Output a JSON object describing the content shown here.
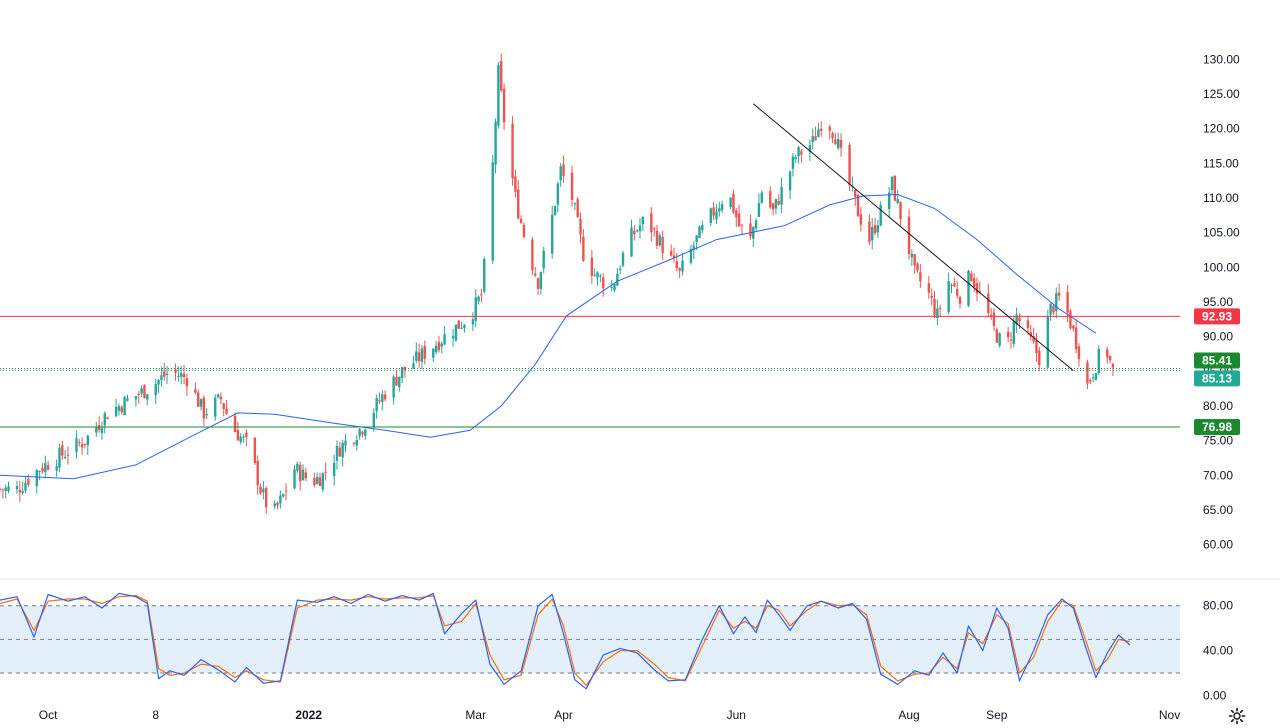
{
  "chart_data": {
    "type": "candlestick",
    "price_ylim": [
      57.5,
      132.5
    ],
    "price_ticks": [
      "130.00",
      "125.00",
      "120.00",
      "115.00",
      "110.00",
      "105.00",
      "100.00",
      "95.00",
      "90.00",
      "85.00",
      "80.00",
      "75.00",
      "70.00",
      "65.00",
      "60.00"
    ],
    "price_tick_values": [
      130,
      125,
      120,
      115,
      110,
      105,
      100,
      95,
      90,
      85,
      80,
      75,
      70,
      65,
      60
    ],
    "osc_ylim": [
      -4,
      94
    ],
    "osc_ticks": [
      "80.00",
      "40.00",
      "0.00"
    ],
    "osc_tick_values": [
      80,
      40,
      0
    ],
    "osc_band": [
      20,
      80
    ],
    "osc_mid": 50,
    "x_labels": [
      "Oct",
      "8",
      "2022",
      "Mar",
      "Apr",
      "Jun",
      "Aug",
      "Sep",
      "Nov"
    ],
    "x_label_bold": [
      false,
      false,
      true,
      false,
      false,
      false,
      false,
      false,
      false
    ],
    "x_label_dates": [
      "2021-10-01",
      "2021-11-08",
      "2022-01-01",
      "2022-03-01",
      "2022-04-01",
      "2022-06-01",
      "2022-08-01",
      "2022-09-01",
      "2022-11-01"
    ],
    "x_start": "2021-09-14",
    "x_end": "2022-12-10",
    "levels": [
      {
        "label": "92.93",
        "value": 92.93,
        "color": "#f23645",
        "style": "solid"
      },
      {
        "label": "85.41",
        "value": 85.41,
        "color": "#1b8a2f",
        "style": "dotted"
      },
      {
        "label": "85.13",
        "value": 85.13,
        "color": "#22ab94",
        "style": "dotted"
      },
      {
        "label": "76.98",
        "value": 76.98,
        "color": "#1b8a2f",
        "style": "solid"
      }
    ],
    "trendline": {
      "from": {
        "date": "2022-06-07",
        "value": 123.6
      },
      "to": {
        "date": "2022-09-28",
        "value": 85.1
      },
      "color": "#131722"
    },
    "series": [
      {
        "name": "",
        "kind": "ohlc"
      },
      {
        "name": "",
        "kind": "moving_average"
      },
      {
        "name": "",
        "kind": "stochastic_k"
      },
      {
        "name": "",
        "kind": "stochastic_d"
      }
    ],
    "close_path": [
      [
        "2021-09-14",
        68
      ],
      [
        "2021-09-20",
        68
      ],
      [
        "2021-09-28",
        71
      ],
      [
        "2021-10-06",
        73
      ],
      [
        "2021-10-14",
        75
      ],
      [
        "2021-10-22",
        79
      ],
      [
        "2021-10-30",
        81
      ],
      [
        "2021-11-07",
        83
      ],
      [
        "2021-11-13",
        85
      ],
      [
        "2021-11-19",
        84
      ],
      [
        "2021-11-25",
        79
      ],
      [
        "2021-12-01",
        81
      ],
      [
        "2021-12-05",
        77
      ],
      [
        "2021-12-11",
        74
      ],
      [
        "2021-12-15",
        68
      ],
      [
        "2021-12-19",
        64
      ],
      [
        "2021-12-23",
        67
      ],
      [
        "2021-12-27",
        71
      ],
      [
        "2022-01-02",
        69
      ],
      [
        "2022-01-06",
        70
      ],
      [
        "2022-01-12",
        74
      ],
      [
        "2022-01-20",
        77
      ],
      [
        "2022-01-28",
        82
      ],
      [
        "2022-02-03",
        85
      ],
      [
        "2022-02-09",
        87
      ],
      [
        "2022-02-15",
        89
      ],
      [
        "2022-02-21",
        91
      ],
      [
        "2022-02-27",
        93
      ],
      [
        "2022-03-03",
        96
      ],
      [
        "2022-03-06",
        108
      ],
      [
        "2022-03-09",
        128
      ],
      [
        "2022-03-12",
        118
      ],
      [
        "2022-03-15",
        110
      ],
      [
        "2022-03-19",
        103
      ],
      [
        "2022-03-23",
        98
      ],
      [
        "2022-03-27",
        105
      ],
      [
        "2022-03-31",
        114
      ],
      [
        "2022-04-04",
        110
      ],
      [
        "2022-04-08",
        102
      ],
      [
        "2022-04-12",
        99
      ],
      [
        "2022-04-18",
        97
      ],
      [
        "2022-04-24",
        104
      ],
      [
        "2022-04-30",
        107
      ],
      [
        "2022-05-06",
        103
      ],
      [
        "2022-05-12",
        99
      ],
      [
        "2022-05-18",
        104
      ],
      [
        "2022-05-24",
        108
      ],
      [
        "2022-05-29",
        111
      ],
      [
        "2022-06-02",
        106
      ],
      [
        "2022-06-06",
        104
      ],
      [
        "2022-06-10",
        111
      ],
      [
        "2022-06-14",
        108
      ],
      [
        "2022-06-18",
        112
      ],
      [
        "2022-06-22",
        116
      ],
      [
        "2022-06-28",
        118
      ],
      [
        "2022-07-02",
        122
      ],
      [
        "2022-07-06",
        119
      ],
      [
        "2022-07-10",
        113
      ],
      [
        "2022-07-14",
        108
      ],
      [
        "2022-07-18",
        104
      ],
      [
        "2022-07-22",
        108
      ],
      [
        "2022-07-26",
        112
      ],
      [
        "2022-07-30",
        106
      ],
      [
        "2022-08-03",
        99
      ],
      [
        "2022-08-07",
        97
      ],
      [
        "2022-08-11",
        93
      ],
      [
        "2022-08-15",
        98
      ],
      [
        "2022-08-19",
        96
      ],
      [
        "2022-08-23",
        99
      ],
      [
        "2022-08-27",
        95
      ],
      [
        "2022-08-31",
        91
      ],
      [
        "2022-09-04",
        88
      ],
      [
        "2022-09-08",
        93
      ],
      [
        "2022-09-12",
        90
      ],
      [
        "2022-09-16",
        87
      ],
      [
        "2022-09-20",
        94
      ],
      [
        "2022-09-24",
        96
      ],
      [
        "2022-09-27",
        92
      ],
      [
        "2022-09-30",
        88
      ],
      [
        "2022-10-03",
        83
      ],
      [
        "2022-10-06",
        86
      ],
      [
        "2022-10-09",
        89
      ],
      [
        "2022-10-12",
        85
      ]
    ],
    "ma_path": [
      [
        "2021-09-14",
        70
      ],
      [
        "2021-10-10",
        69.5
      ],
      [
        "2021-11-01",
        71.5
      ],
      [
        "2021-11-20",
        75.5
      ],
      [
        "2021-12-07",
        79
      ],
      [
        "2021-12-20",
        78.8
      ],
      [
        "2022-01-10",
        77.5
      ],
      [
        "2022-01-28",
        76.5
      ],
      [
        "2022-02-13",
        75.5
      ],
      [
        "2022-02-27",
        76.5
      ],
      [
        "2022-03-10",
        80
      ],
      [
        "2022-03-22",
        86
      ],
      [
        "2022-04-02",
        93
      ],
      [
        "2022-04-20",
        98
      ],
      [
        "2022-05-08",
        101
      ],
      [
        "2022-05-25",
        104
      ],
      [
        "2022-06-06",
        105
      ],
      [
        "2022-06-18",
        106
      ],
      [
        "2022-07-04",
        109
      ],
      [
        "2022-07-16",
        110.3
      ],
      [
        "2022-07-28",
        110.5
      ],
      [
        "2022-08-10",
        108.5
      ],
      [
        "2022-08-25",
        104
      ],
      [
        "2022-09-08",
        99
      ],
      [
        "2022-09-23",
        94
      ],
      [
        "2022-10-06",
        90.5
      ]
    ],
    "stoch_k_path": [
      [
        "2021-09-14",
        85
      ],
      [
        "2021-09-20",
        88
      ],
      [
        "2021-09-26",
        52
      ],
      [
        "2021-10-01",
        90
      ],
      [
        "2021-10-08",
        84
      ],
      [
        "2021-10-14",
        88
      ],
      [
        "2021-10-20",
        78
      ],
      [
        "2021-10-26",
        91
      ],
      [
        "2021-11-01",
        88
      ],
      [
        "2021-11-05",
        82
      ],
      [
        "2021-11-09",
        15
      ],
      [
        "2021-11-13",
        22
      ],
      [
        "2021-11-18",
        18
      ],
      [
        "2021-11-24",
        32
      ],
      [
        "2021-11-30",
        23
      ],
      [
        "2021-12-06",
        12
      ],
      [
        "2021-12-10",
        25
      ],
      [
        "2021-12-16",
        11
      ],
      [
        "2021-12-22",
        13
      ],
      [
        "2021-12-28",
        85
      ],
      [
        "2022-01-04",
        83
      ],
      [
        "2022-01-10",
        88
      ],
      [
        "2022-01-16",
        82
      ],
      [
        "2022-01-22",
        90
      ],
      [
        "2022-01-28",
        84
      ],
      [
        "2022-02-03",
        89
      ],
      [
        "2022-02-09",
        85
      ],
      [
        "2022-02-14",
        91
      ],
      [
        "2022-02-18",
        55
      ],
      [
        "2022-02-24",
        73
      ],
      [
        "2022-03-01",
        85
      ],
      [
        "2022-03-06",
        28
      ],
      [
        "2022-03-11",
        10
      ],
      [
        "2022-03-17",
        22
      ],
      [
        "2022-03-23",
        80
      ],
      [
        "2022-03-28",
        90
      ],
      [
        "2022-04-01",
        55
      ],
      [
        "2022-04-05",
        14
      ],
      [
        "2022-04-09",
        6
      ],
      [
        "2022-04-15",
        36
      ],
      [
        "2022-04-21",
        42
      ],
      [
        "2022-04-27",
        38
      ],
      [
        "2022-05-03",
        23
      ],
      [
        "2022-05-08",
        13
      ],
      [
        "2022-05-14",
        14
      ],
      [
        "2022-05-20",
        50
      ],
      [
        "2022-05-26",
        80
      ],
      [
        "2022-05-31",
        55
      ],
      [
        "2022-06-04",
        70
      ],
      [
        "2022-06-08",
        56
      ],
      [
        "2022-06-12",
        85
      ],
      [
        "2022-06-16",
        72
      ],
      [
        "2022-06-20",
        58
      ],
      [
        "2022-06-26",
        80
      ],
      [
        "2022-07-01",
        84
      ],
      [
        "2022-07-07",
        78
      ],
      [
        "2022-07-12",
        82
      ],
      [
        "2022-07-17",
        68
      ],
      [
        "2022-07-22",
        19
      ],
      [
        "2022-07-28",
        10
      ],
      [
        "2022-08-03",
        22
      ],
      [
        "2022-08-08",
        18
      ],
      [
        "2022-08-13",
        38
      ],
      [
        "2022-08-18",
        20
      ],
      [
        "2022-08-22",
        62
      ],
      [
        "2022-08-27",
        40
      ],
      [
        "2022-09-01",
        78
      ],
      [
        "2022-09-05",
        60
      ],
      [
        "2022-09-09",
        13
      ],
      [
        "2022-09-14",
        40
      ],
      [
        "2022-09-19",
        72
      ],
      [
        "2022-09-24",
        86
      ],
      [
        "2022-09-28",
        78
      ],
      [
        "2022-10-02",
        46
      ],
      [
        "2022-10-06",
        16
      ],
      [
        "2022-10-10",
        38
      ],
      [
        "2022-10-14",
        54
      ],
      [
        "2022-10-18",
        45
      ]
    ],
    "stoch_d_path": [
      [
        "2021-09-14",
        82
      ],
      [
        "2021-09-20",
        86
      ],
      [
        "2021-09-26",
        58
      ],
      [
        "2021-10-01",
        84
      ],
      [
        "2021-10-08",
        86
      ],
      [
        "2021-10-14",
        86
      ],
      [
        "2021-10-20",
        82
      ],
      [
        "2021-10-26",
        88
      ],
      [
        "2021-11-01",
        89
      ],
      [
        "2021-11-05",
        84
      ],
      [
        "2021-11-09",
        24
      ],
      [
        "2021-11-13",
        18
      ],
      [
        "2021-11-18",
        20
      ],
      [
        "2021-11-24",
        28
      ],
      [
        "2021-11-30",
        26
      ],
      [
        "2021-12-06",
        16
      ],
      [
        "2021-12-10",
        22
      ],
      [
        "2021-12-16",
        14
      ],
      [
        "2021-12-22",
        12
      ],
      [
        "2021-12-28",
        78
      ],
      [
        "2022-01-04",
        85
      ],
      [
        "2022-01-10",
        86
      ],
      [
        "2022-01-16",
        85
      ],
      [
        "2022-01-22",
        88
      ],
      [
        "2022-01-28",
        86
      ],
      [
        "2022-02-03",
        87
      ],
      [
        "2022-02-09",
        87
      ],
      [
        "2022-02-14",
        89
      ],
      [
        "2022-02-18",
        62
      ],
      [
        "2022-02-24",
        66
      ],
      [
        "2022-03-01",
        82
      ],
      [
        "2022-03-06",
        36
      ],
      [
        "2022-03-11",
        14
      ],
      [
        "2022-03-17",
        18
      ],
      [
        "2022-03-23",
        72
      ],
      [
        "2022-03-28",
        86
      ],
      [
        "2022-04-01",
        62
      ],
      [
        "2022-04-05",
        20
      ],
      [
        "2022-04-09",
        9
      ],
      [
        "2022-04-15",
        30
      ],
      [
        "2022-04-21",
        40
      ],
      [
        "2022-04-27",
        40
      ],
      [
        "2022-05-03",
        28
      ],
      [
        "2022-05-08",
        16
      ],
      [
        "2022-05-14",
        13
      ],
      [
        "2022-05-20",
        44
      ],
      [
        "2022-05-26",
        76
      ],
      [
        "2022-05-31",
        60
      ],
      [
        "2022-06-04",
        66
      ],
      [
        "2022-06-08",
        60
      ],
      [
        "2022-06-12",
        80
      ],
      [
        "2022-06-16",
        76
      ],
      [
        "2022-06-20",
        62
      ],
      [
        "2022-06-26",
        76
      ],
      [
        "2022-07-01",
        84
      ],
      [
        "2022-07-07",
        80
      ],
      [
        "2022-07-12",
        81
      ],
      [
        "2022-07-17",
        72
      ],
      [
        "2022-07-22",
        26
      ],
      [
        "2022-07-28",
        13
      ],
      [
        "2022-08-03",
        19
      ],
      [
        "2022-08-08",
        20
      ],
      [
        "2022-08-13",
        34
      ],
      [
        "2022-08-18",
        24
      ],
      [
        "2022-08-22",
        56
      ],
      [
        "2022-08-27",
        46
      ],
      [
        "2022-09-01",
        72
      ],
      [
        "2022-09-05",
        64
      ],
      [
        "2022-09-09",
        20
      ],
      [
        "2022-09-14",
        34
      ],
      [
        "2022-09-19",
        66
      ],
      [
        "2022-09-24",
        84
      ],
      [
        "2022-09-28",
        80
      ],
      [
        "2022-10-02",
        52
      ],
      [
        "2022-10-06",
        22
      ],
      [
        "2022-10-10",
        32
      ],
      [
        "2022-10-14",
        50
      ],
      [
        "2022-10-18",
        48
      ]
    ],
    "candles_end": "2022-10-12",
    "colors": {
      "up": "#26a69a",
      "down": "#ef5350",
      "ma": "#2962ff",
      "stoch_k": "#2962ff",
      "stoch_d": "#ff6d00",
      "osc_band": "#e3f0fc",
      "osc_band_line": "#787b86",
      "grid_sep": "#e0e3eb",
      "axis_text": "#131722"
    }
  }
}
